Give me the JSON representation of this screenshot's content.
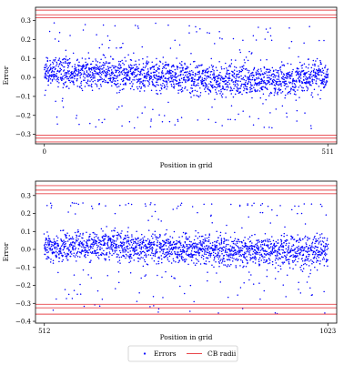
{
  "colors": {
    "points": "#0000ff",
    "cb_radii": "#e8464b",
    "axes": "#000000",
    "background": "#ffffff"
  },
  "legend": {
    "placement": "bottom-center",
    "items": [
      {
        "key": "errors",
        "label": "Errors",
        "marker": "point"
      },
      {
        "key": "cb_radii",
        "label": "CB radii",
        "marker": "line"
      }
    ]
  },
  "chart_data": [
    {
      "type": "scatter",
      "title": "",
      "xlabel": "Position in grid",
      "ylabel": "Error",
      "xlim": [
        -16,
        527
      ],
      "ylim": [
        -0.35,
        0.37
      ],
      "xticks": [
        0,
        511
      ],
      "xtick_labels": [
        "0",
        "511"
      ],
      "yticks": [
        -0.3,
        -0.2,
        -0.1,
        0.0,
        0.1,
        0.2,
        0.3
      ],
      "ytick_labels": [
        "−0.3",
        "−0.2",
        "−0.1",
        "0.0",
        "0.1",
        "0.2",
        "0.3"
      ],
      "grid": false,
      "cb_radii": [
        0.355,
        0.33,
        0.315,
        -0.305,
        -0.32,
        -0.34
      ],
      "errors": {
        "x_start": 0,
        "x_end": 511,
        "points_per_x": 4,
        "mean": [
          [
            0,
            0.03
          ],
          [
            150,
            0.02
          ],
          [
            300,
            -0.01
          ],
          [
            420,
            -0.02
          ],
          [
            511,
            0.01
          ]
        ],
        "spread": 0.12,
        "min": -0.27,
        "max": 0.29
      }
    },
    {
      "type": "scatter",
      "title": "",
      "xlabel": "Position in grid",
      "ylabel": "Error",
      "xlim": [
        496,
        1039
      ],
      "ylim": [
        -0.41,
        0.38
      ],
      "xticks": [
        512,
        1023
      ],
      "xtick_labels": [
        "512",
        "1023"
      ],
      "yticks": [
        -0.4,
        -0.3,
        -0.2,
        -0.1,
        0.0,
        0.1,
        0.2,
        0.3
      ],
      "ytick_labels": [
        "−0.4",
        "−0.3",
        "−0.2",
        "−0.1",
        "0.0",
        "0.1",
        "0.2",
        "0.3"
      ],
      "grid": false,
      "cb_radii": [
        0.355,
        0.33,
        0.31,
        -0.305,
        -0.325,
        -0.36
      ],
      "errors": {
        "x_start": 512,
        "x_end": 1023,
        "points_per_x": 4,
        "mean": [
          [
            512,
            0.01
          ],
          [
            650,
            0.02
          ],
          [
            800,
            0.0
          ],
          [
            950,
            -0.01
          ],
          [
            1023,
            -0.01
          ]
        ],
        "spread": 0.12,
        "min": -0.37,
        "max": 0.26
      }
    }
  ]
}
